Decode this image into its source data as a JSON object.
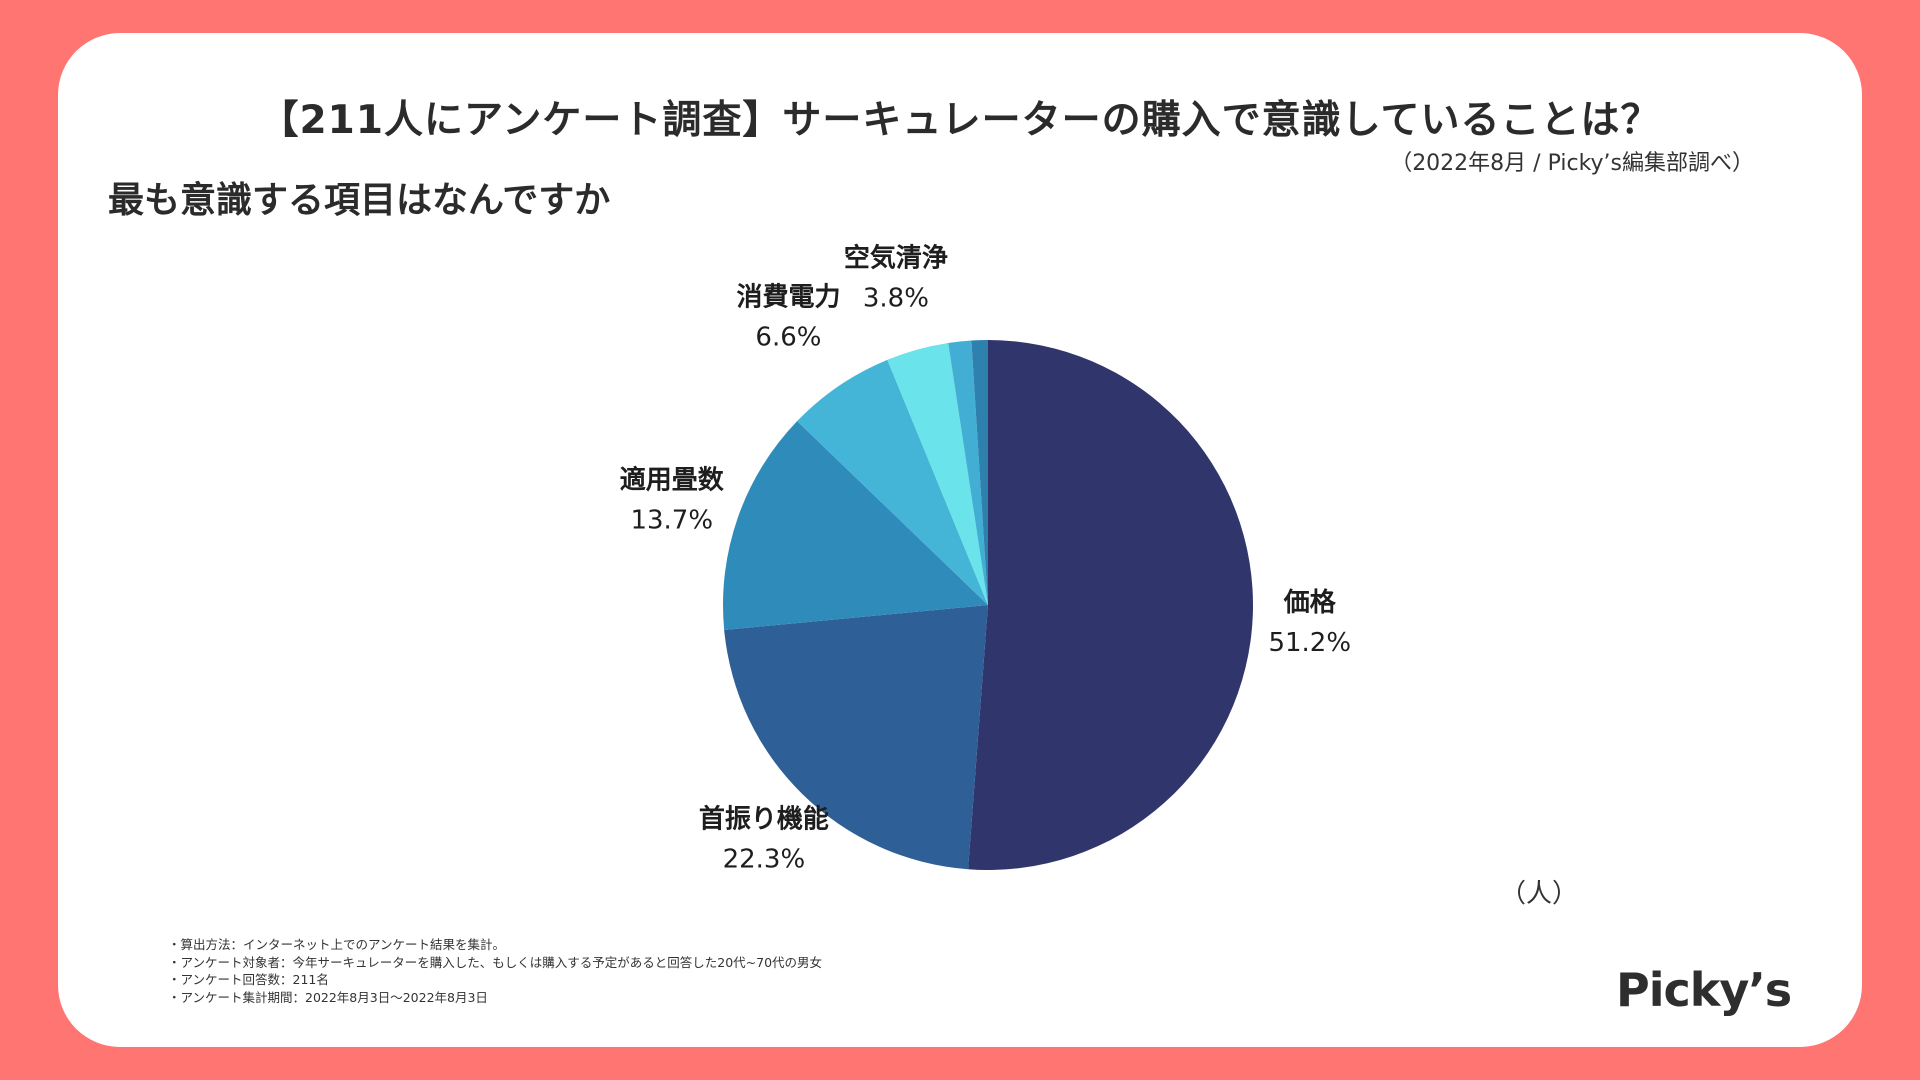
{
  "header": {
    "title": "【211人にアンケート調査】サーキュレーターの購入で意識していることは？",
    "source": "（2022年8月 / Picky’s編集部調べ）",
    "subtitle": "最も意識する項目はなんですか"
  },
  "unit_label": "（人）",
  "notes": [
    "・算出方法：インターネット上でのアンケート結果を集計。",
    "・アンケート対象者：今年サーキュレーターを購入した、もしくは購入する予定があると回答した20代~70代の男女",
    "・アンケート回答数：211名",
    "・アンケート集計期間：2022年8月3日〜2022年8月3日"
  ],
  "logo": "Picky’s",
  "chart_data": {
    "type": "pie",
    "title": "最も意識する項目はなんですか",
    "unit": "（人）",
    "start_angle_deg": 0,
    "direction": "clockwise",
    "slices": [
      {
        "label": "価格",
        "value": 51.2,
        "value_label": "51.2%",
        "color": "#30356b",
        "show_label": true
      },
      {
        "label": "首振り機能",
        "value": 22.3,
        "value_label": "22.3%",
        "color": "#2e5f96",
        "show_label": true
      },
      {
        "label": "適用畳数",
        "value": 13.7,
        "value_label": "13.7%",
        "color": "#2e8bba",
        "show_label": true
      },
      {
        "label": "消費電力",
        "value": 6.6,
        "value_label": "6.6%",
        "color": "#44b5d6",
        "show_label": true
      },
      {
        "label": "空気清浄",
        "value": 3.8,
        "value_label": "3.8%",
        "color": "#6be3ea",
        "show_label": true
      },
      {
        "label": "",
        "value": 1.4,
        "value_label": "",
        "color": "#43aed4",
        "show_label": false
      },
      {
        "label": "",
        "value": 1.0,
        "value_label": "",
        "color": "#2e80ad",
        "show_label": false
      }
    ]
  }
}
